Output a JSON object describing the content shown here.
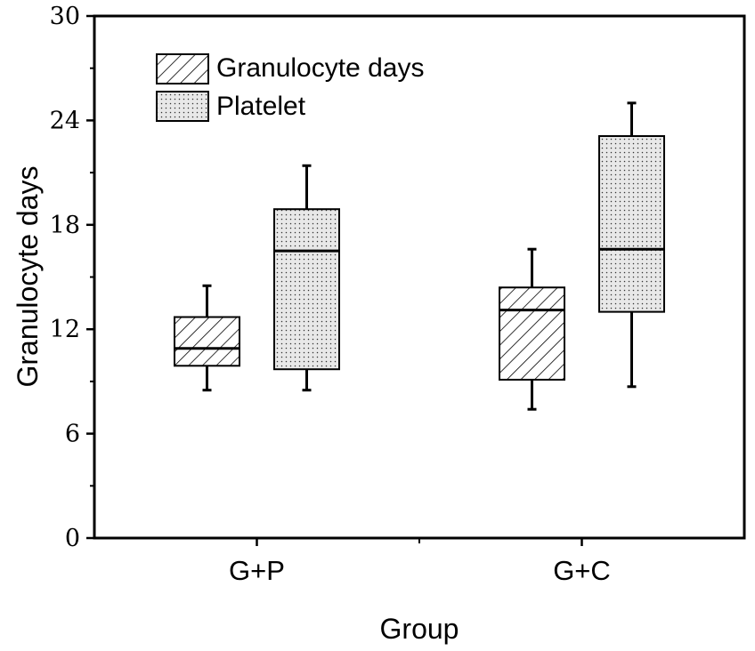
{
  "chart_data": {
    "type": "box",
    "title": "",
    "xlabel": "Group",
    "ylabel": "Granulocyte days",
    "ylim": [
      0,
      30
    ],
    "yticks": [
      0,
      6,
      12,
      18,
      24,
      30
    ],
    "yticks_labels": [
      "0",
      "6",
      "12",
      "18",
      "24",
      "30"
    ],
    "categories": [
      "G+P",
      "G+C"
    ],
    "legend_position": "top-left",
    "grid": false,
    "series": [
      {
        "name": "Granulocyte days",
        "pattern": "hatch",
        "boxes": [
          {
            "category": "G+P",
            "whisker_low": 8.5,
            "q1": 9.9,
            "median": 10.9,
            "q3": 12.7,
            "whisker_high": 14.5
          },
          {
            "category": "G+C",
            "whisker_low": 7.4,
            "q1": 9.1,
            "median": 13.1,
            "q3": 14.4,
            "whisker_high": 16.6
          }
        ]
      },
      {
        "name": "Platelet",
        "pattern": "dots",
        "boxes": [
          {
            "category": "G+P",
            "whisker_low": 8.5,
            "q1": 9.7,
            "median": 16.5,
            "q3": 18.9,
            "whisker_high": 21.4
          },
          {
            "category": "G+C",
            "whisker_low": 8.7,
            "q1": 13.0,
            "median": 16.6,
            "q3": 23.1,
            "whisker_high": 25.0
          }
        ]
      }
    ]
  }
}
